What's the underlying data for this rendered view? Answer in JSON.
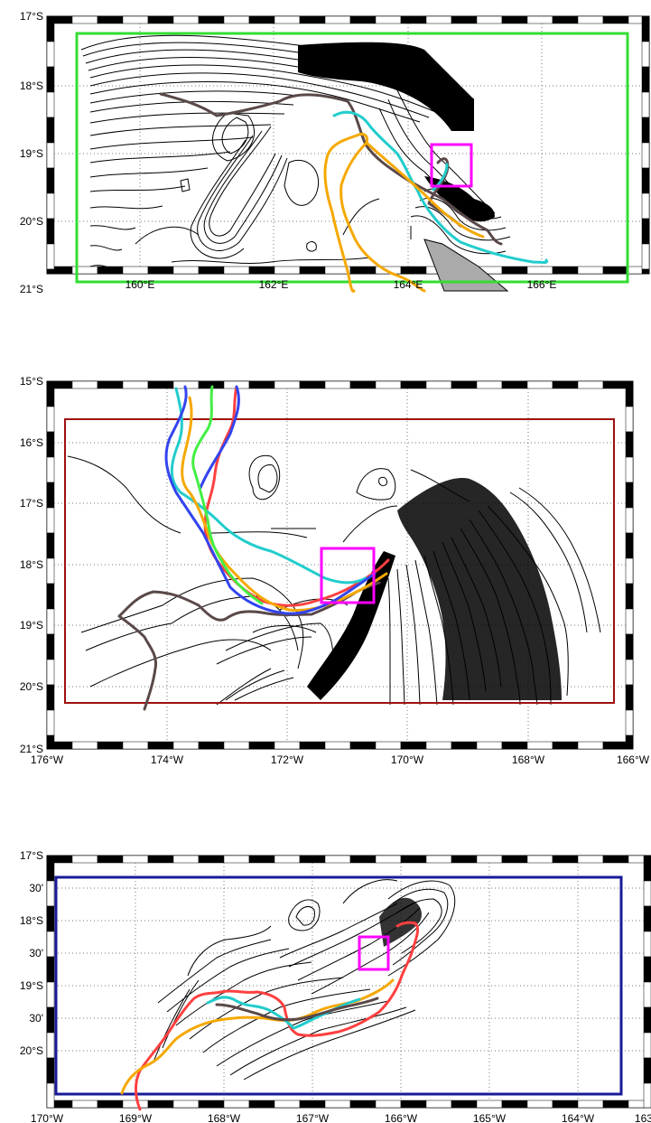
{
  "colors": {
    "frame": "#000000",
    "grid": "#777777",
    "contour": "#000000",
    "magenta": "#ff00ff",
    "green": "#33dd33",
    "darkred": "#a01010",
    "navy": "#1a1a99",
    "orange": "#f5a800",
    "cyan": "#22cccc",
    "brown": "#5a4848",
    "blue": "#3344ee",
    "lime": "#44ee44",
    "red": "#ff4040",
    "land": "#aaaaaa"
  },
  "maps": [
    {
      "id": "map1",
      "lon_ticks": [
        "160°E",
        "162°E",
        "164°E",
        "166°E"
      ],
      "lat_ticks": [
        "17°S",
        "18°S",
        "19°S",
        "20°S",
        "21°S"
      ],
      "bbox_color": "green",
      "tracks": [
        "brown",
        "cyan",
        "orange"
      ]
    },
    {
      "id": "map2",
      "lon_ticks": [
        "176°W",
        "174°W",
        "172°W",
        "170°W",
        "168°W",
        "166°W"
      ],
      "lat_ticks": [
        "15°S",
        "16°S",
        "17°S",
        "18°S",
        "19°S",
        "20°S",
        "21°S"
      ],
      "bbox_color": "darkred",
      "tracks": [
        "brown",
        "cyan",
        "orange",
        "blue",
        "lime",
        "red"
      ]
    },
    {
      "id": "map3",
      "lon_ticks": [
        "170°W",
        "169°W",
        "168°W",
        "167°W",
        "166°W",
        "165°W",
        "164°W",
        "163°W"
      ],
      "lat_ticks": [
        "17°S",
        "30'",
        "18°S",
        "30'",
        "19°S",
        "30'",
        "20°S"
      ],
      "bbox_color": "navy",
      "tracks": [
        "red",
        "orange",
        "cyan",
        "brown"
      ]
    }
  ]
}
